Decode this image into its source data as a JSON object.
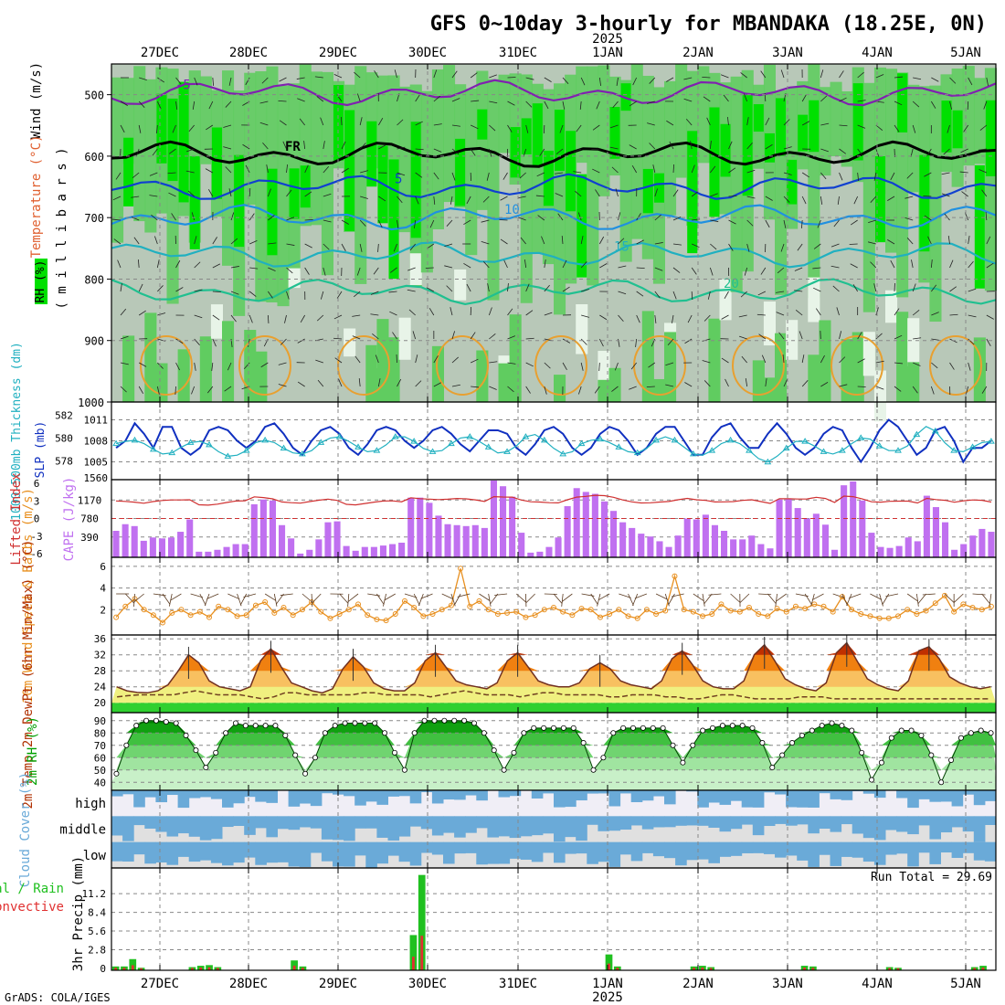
{
  "title": "GFS 0~10day 3-hourly for MBANDAKA (18.25E, 0N)",
  "footer": "GrADS: COLA/IGES",
  "dates": [
    "27DEC",
    "28DEC",
    "29DEC",
    "30DEC",
    "31DEC",
    "1JAN",
    "2JAN",
    "3JAN",
    "4JAN",
    "5JAN"
  ],
  "year_label": "2025",
  "colors": {
    "rh_green": "#00e000",
    "rh_mid": "#60cc60",
    "rh_gray": "#b8c8b8",
    "rh_light": "#e8f4e8",
    "slp": "#1030c0",
    "thick": "#20b0c0",
    "cape": "#c070f0",
    "li": "#d03030",
    "wind10": "#e89020",
    "temp_dark": "#c03000",
    "temp_orange": "#f08010",
    "temp_light": "#f8c060",
    "temp_yellow": "#f0f080",
    "rh2m": "#00a000",
    "cloud": "#6aaad8",
    "cloud_bg": "#e0e0e0",
    "precip": "#20c020",
    "conv": "#e03030"
  },
  "chart_data": [
    {
      "type": "heatmap",
      "panel": "upper-air",
      "ylabel_parts": [
        "RH (%)",
        "Temperature (°C)",
        "Wind (m/s)"
      ],
      "ylabel_units": "( m i l l i b a r s )",
      "y_ticks": [
        500,
        600,
        700,
        800,
        900,
        1000
      ],
      "ylim": [
        450,
        1000
      ],
      "isotherms": [
        {
          "label": "-5",
          "level": 497
        },
        {
          "label": "FR",
          "level": 597
        },
        {
          "label": "5",
          "level": 650
        },
        {
          "label": "10",
          "level": 700
        },
        {
          "label": "15",
          "level": 760
        },
        {
          "label": "20",
          "level": 820
        }
      ]
    },
    {
      "type": "line",
      "panel": "slp-thickness",
      "ylabel_left": "1000-500mb Thickness (dm)",
      "ylabel_right": "SLP (mb)",
      "left_ticks": [
        578,
        580,
        582
      ],
      "right_ticks": [
        1560,
        1005,
        1008,
        1011
      ],
      "series": [
        {
          "name": "SLP (mb)",
          "values": [
            1007,
            1008,
            1010.5,
            1009,
            1007,
            1010,
            1010,
            1007,
            1006,
            1007,
            1009.5,
            1010,
            1009.5,
            1008,
            1007,
            1008,
            1010,
            1010.5,
            1009,
            1007,
            1006,
            1008,
            1009.5,
            1010,
            1009,
            1007,
            1006,
            1007.5,
            1009.5,
            1010,
            1009.5,
            1008,
            1007,
            1008,
            1009.5,
            1010,
            1009,
            1007.5,
            1006.5,
            1008,
            1009.5,
            1009.5,
            1009,
            1007,
            1006,
            1007.5,
            1009.5,
            1010,
            1009,
            1007,
            1006,
            1007,
            1009,
            1010,
            1009.5,
            1008,
            1006,
            1007,
            1009,
            1010,
            1010,
            1008,
            1006,
            1006,
            1008.5,
            1010,
            1010.5,
            1008.5,
            1007,
            1007,
            1009,
            1010.5,
            1009,
            1007,
            1006,
            1007,
            1009,
            1010,
            1009.5,
            1007,
            1005,
            1007,
            1009.5,
            1011,
            1010,
            1008,
            1006,
            1007,
            1009.5,
            1010,
            1008,
            1005,
            1007,
            1007,
            1008
          ]
        },
        {
          "name": "1000-500mb Thickness (dm)",
          "values": [
            579.5,
            579.7,
            579.8,
            579.5,
            579.0,
            578.6,
            578.7,
            579.2,
            579.6,
            579.7,
            579.4,
            578.8,
            578.4,
            578.5,
            578.9,
            579.6,
            579.8,
            579.6,
            579.1,
            578.7,
            578.6,
            578.9,
            579.6,
            580.0,
            580.1,
            579.7,
            579.2,
            578.8,
            578.9,
            579.4,
            580.1,
            580.1,
            579.7,
            579.1,
            578.8,
            578.9,
            579.5,
            580.0,
            580.1,
            579.7,
            579.2,
            578.7,
            578.8,
            579.3,
            580.1,
            580.3,
            579.8,
            579.1,
            578.6,
            578.8,
            579.5,
            579.8,
            579.9,
            579.6,
            579.2,
            578.8,
            578.7,
            579.1,
            579.8,
            580.1,
            579.8,
            579.2,
            578.6,
            578.5,
            578.9,
            579.5,
            579.8,
            579.5,
            578.9,
            578.2,
            577.9,
            578.4,
            579.1,
            579.7,
            579.7,
            579.3,
            578.8,
            578.6,
            578.9,
            579.5,
            580.0,
            579.9,
            579.3,
            578.9,
            578.9,
            579.3,
            580.3,
            581.0,
            580.6,
            579.6,
            578.9,
            578.8,
            579.2,
            579.6,
            579.7
          ]
        }
      ]
    },
    {
      "type": "bar",
      "panel": "cape-li",
      "ylabel_left": "Lifted Index",
      "ylabel_right": "CAPE (J/kg)",
      "li_ticks": [
        -6,
        -3,
        0,
        3,
        6
      ],
      "li_tick_labels": [
        "6",
        "3",
        "0",
        "-3",
        "-6"
      ],
      "cape_ticks": [
        390,
        780,
        1170
      ],
      "cape_values": [
        520,
        660,
        620,
        310,
        380,
        360,
        380,
        500,
        760,
        80,
        80,
        120,
        180,
        240,
        240,
        1080,
        1180,
        1160,
        640,
        360,
        40,
        120,
        340,
        700,
        720,
        200,
        100,
        180,
        180,
        210,
        240,
        270,
        1220,
        1220,
        1110,
        840,
        660,
        640,
        620,
        640,
        580,
        1580,
        1460,
        1240,
        480,
        60,
        80,
        180,
        380,
        1040,
        1420,
        1340,
        1300,
        1140,
        940,
        700,
        580,
        460,
        400,
        300,
        180,
        420,
        780,
        760,
        860,
        640,
        520,
        340,
        340,
        420,
        240,
        150,
        1180,
        1200,
        1000,
        780,
        880,
        650,
        120,
        1480,
        1560,
        1160,
        480,
        180,
        160,
        200,
        380,
        300,
        1260,
        1020,
        700,
        120,
        240,
        420,
        560,
        500
      ]
    },
    {
      "type": "line",
      "panel": "wind10m",
      "ylabel": "10m Wind Speed & Barbs (m/s)",
      "y_ticks": [
        2,
        4,
        6
      ],
      "values": [
        1.3,
        2.3,
        3.0,
        2.0,
        1.5,
        0.8,
        1.7,
        2.0,
        1.5,
        1.8,
        1.3,
        2.3,
        2.0,
        1.4,
        1.5,
        2.4,
        2.7,
        1.7,
        2.2,
        1.5,
        2.0,
        2.7,
        1.8,
        1.2,
        1.6,
        2.0,
        2.5,
        1.5,
        1.1,
        1.0,
        1.6,
        2.8,
        2.2,
        1.4,
        1.6,
        2.0,
        2.4,
        5.8,
        2.3,
        2.8,
        2.0,
        1.6,
        1.7,
        1.8,
        1.3,
        1.5,
        2.0,
        2.2,
        1.8,
        1.5,
        2.1,
        2.0,
        1.3,
        1.6,
        2.0,
        1.4,
        1.2,
        2.0,
        1.6,
        1.9,
        5.1,
        2.0,
        1.8,
        1.4,
        1.6,
        2.5,
        1.9,
        1.8,
        2.2,
        1.6,
        1.4,
        2.1,
        1.8,
        2.3,
        2.1,
        2.5,
        2.3,
        1.8,
        3.2,
        2.0,
        1.6,
        1.4,
        1.2,
        1.2,
        1.4,
        2.0,
        1.6,
        1.9,
        2.6,
        3.3,
        1.8,
        2.5,
        2.2,
        2.0,
        2.3
      ]
    },
    {
      "type": "area",
      "panel": "temp2m",
      "ylabel": "2m Temp 2m DewPt (6hr Min/Max) (°C)",
      "y_ticks": [
        20,
        24,
        28,
        32,
        36
      ],
      "temp": [
        24.0,
        23.0,
        22.6,
        22.5,
        23.0,
        24.5,
        28.0,
        32.0,
        30.0,
        25.5,
        24.0,
        23.5,
        23.0,
        24.0,
        30.5,
        33.5,
        29.0,
        25.0,
        24.0,
        23.0,
        22.5,
        23.5,
        28.5,
        31.5,
        29.0,
        25.0,
        23.5,
        23.0,
        23.0,
        25.0,
        30.5,
        32.5,
        29.0,
        25.5,
        24.5,
        24.0,
        23.5,
        25.0,
        30.5,
        32.5,
        29.0,
        25.5,
        24.5,
        24.0,
        24.0,
        25.0,
        28.5,
        30.0,
        28.5,
        25.5,
        24.5,
        24.0,
        23.5,
        25.5,
        31.0,
        33.0,
        29.5,
        25.5,
        24.0,
        23.5,
        23.5,
        25.5,
        32.0,
        34.5,
        30.5,
        26.0,
        24.5,
        23.5,
        23.0,
        25.0,
        32.5,
        35.0,
        30.5,
        26.0,
        24.5,
        23.5,
        23.0,
        25.5,
        33.0,
        34.0,
        31.0,
        26.5,
        25.0,
        24.0,
        23.5,
        24.0
      ],
      "dewpt": [
        21.5,
        21.8,
        22.0,
        22.0,
        22.0,
        22.0,
        22.5,
        23.0,
        22.5,
        22.0,
        22.0,
        22.0,
        21.5,
        21.0,
        21.5,
        22.5,
        22.5,
        22.0,
        22.0,
        22.0,
        22.0,
        22.0,
        22.5,
        22.5,
        22.0,
        22.0,
        22.0,
        22.0,
        21.5,
        22.0,
        22.5,
        23.0,
        22.5,
        22.0,
        22.0,
        22.0,
        21.5,
        22.0,
        22.5,
        22.5,
        22.0,
        22.0,
        22.0,
        22.0,
        21.5,
        21.5,
        22.0,
        22.0,
        22.0,
        21.5,
        21.5,
        21.0,
        21.0,
        21.5,
        22.0,
        22.0,
        21.5,
        21.0,
        21.0,
        21.0,
        21.0,
        21.5,
        21.5,
        21.5,
        21.0,
        21.0,
        21.0,
        21.0,
        21.0,
        21.0,
        21.0,
        21.0,
        21.0,
        21.0,
        21.0,
        21.0,
        21.0,
        21.0,
        21.0
      ]
    },
    {
      "type": "area",
      "panel": "rh2m",
      "ylabel": "2m RH (%)",
      "y_ticks": [
        40,
        50,
        60,
        70,
        80,
        90
      ],
      "values": [
        47,
        70,
        86,
        90,
        90,
        89,
        88,
        78,
        66,
        52,
        64,
        80,
        88,
        86,
        86,
        86,
        86,
        78,
        62,
        47,
        60,
        80,
        86,
        88,
        88,
        88,
        88,
        80,
        64,
        50,
        80,
        90,
        90,
        90,
        90,
        90,
        88,
        80,
        66,
        50,
        64,
        80,
        84,
        84,
        84,
        84,
        84,
        72,
        50,
        60,
        80,
        84,
        84,
        84,
        84,
        84,
        70,
        56,
        70,
        82,
        84,
        86,
        86,
        86,
        84,
        72,
        52,
        62,
        72,
        78,
        82,
        86,
        88,
        86,
        82,
        64,
        42,
        56,
        76,
        82,
        82,
        78,
        62,
        40,
        58,
        76,
        80,
        82,
        80
      ]
    },
    {
      "type": "heatmap",
      "panel": "cloud",
      "ylabel": "Cloud Cover (%)",
      "row_labels": [
        "high",
        "middle",
        "low"
      ]
    },
    {
      "type": "bar",
      "panel": "precip",
      "ylabel": "3hr Precip (mm)",
      "legend_left": "Total / Rain",
      "legend_left2": "Convective",
      "run_total": "Run Total = 29.69",
      "y_ticks": [
        0,
        2.8,
        5.6,
        8.4,
        11.2
      ],
      "values": [
        0.3,
        0.3,
        1.4,
        0.1,
        0,
        0,
        0,
        0,
        0,
        0.2,
        0.4,
        0.5,
        0.2,
        0,
        0,
        0,
        0,
        0,
        0,
        0,
        0,
        1.2,
        0.3,
        0,
        0,
        0,
        0,
        0,
        0,
        0,
        0,
        0,
        0,
        0,
        0,
        5.0,
        14.0,
        0,
        0,
        0,
        0,
        0,
        0,
        0,
        0,
        0,
        0,
        0,
        0,
        0,
        0,
        0,
        0,
        0,
        0,
        0,
        0,
        0,
        2.1,
        0.3,
        0,
        0,
        0,
        0,
        0,
        0,
        0,
        0,
        0.3,
        0.4,
        0.2,
        0,
        0,
        0,
        0,
        0,
        0,
        0,
        0,
        0,
        0,
        0.4,
        0.3,
        0,
        0,
        0,
        0,
        0,
        0,
        0,
        0,
        0.2,
        0.1,
        0,
        0,
        0,
        0,
        0,
        0,
        0,
        0,
        0.2,
        0.4,
        0
      ]
    }
  ]
}
